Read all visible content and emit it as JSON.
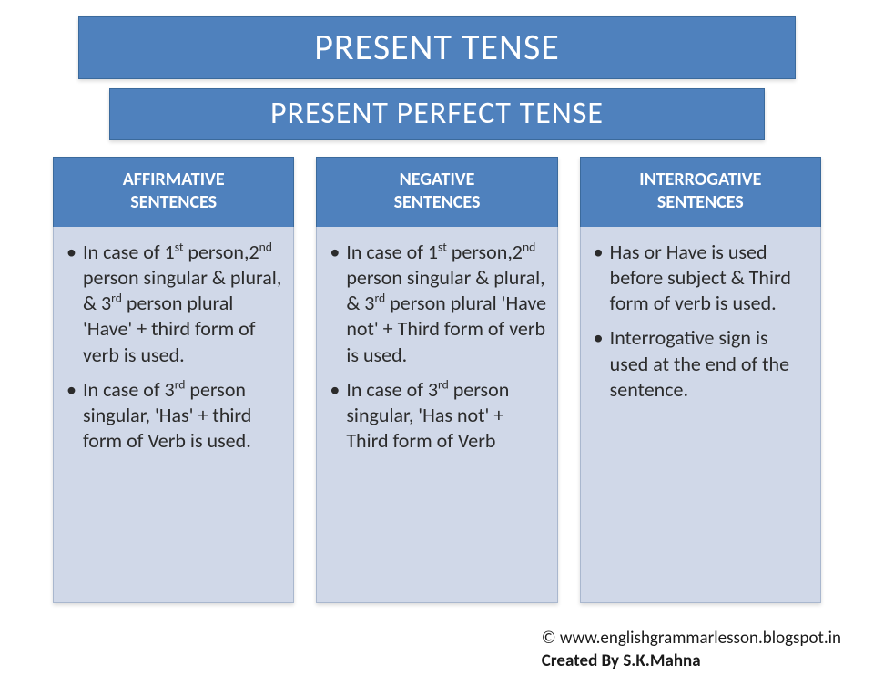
{
  "colors": {
    "header_bg": "#4f81bd",
    "header_text": "#ffffff",
    "card_body_bg": "#d0d8e8",
    "body_text": "#2b2b2b",
    "page_bg": "#ffffff"
  },
  "title1": "PRESENT TENSE",
  "title2": "PRESENT PERFECT TENSE",
  "cards": [
    {
      "header_line1": "AFFIRMATIVE",
      "header_line2": "SENTENCES",
      "bullets": [
        "In case of 1<sup>st</sup> person,2<sup>nd</sup> person singular & plural, & 3<sup>rd</sup> person plural 'Have' + third form of verb is used.",
        "In case of 3<sup>rd</sup> person singular, 'Has' + third form of Verb  is used."
      ]
    },
    {
      "header_line1": "NEGATIVE",
      "header_line2": "SENTENCES",
      "bullets": [
        "In case of 1<sup>st</sup> person,2<sup>nd</sup> person singular & plural, & 3<sup>rd</sup> person plural 'Have not' +  Third form of verb is used.",
        "In case of 3<sup>rd</sup> person singular, 'Has not' + Third form of Verb"
      ]
    },
    {
      "header_line1": "INTERROGATIVE",
      "header_line2": "SENTENCES",
      "bullets": [
        "Has or Have is used before subject & Third form of verb is used.",
        "Interrogative sign is used at the end of the sentence."
      ]
    }
  ],
  "footer": {
    "line1": "© www.englishgrammarlesson.blogspot.in",
    "line2": "Created By S.K.Mahna"
  }
}
